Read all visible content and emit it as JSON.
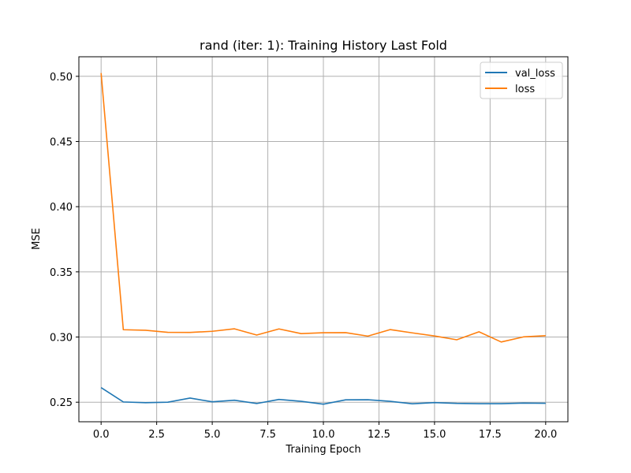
{
  "chart_data": {
    "type": "line",
    "title": "rand (iter: 1): Training History Last Fold",
    "xlabel": "Training Epoch",
    "ylabel": "MSE",
    "xlim": [
      -1.0,
      21.0
    ],
    "ylim": [
      0.235,
      0.515
    ],
    "xticks": [
      0.0,
      2.5,
      5.0,
      7.5,
      10.0,
      12.5,
      15.0,
      17.5,
      20.0
    ],
    "xtick_labels": [
      "0.0",
      "2.5",
      "5.0",
      "7.5",
      "10.0",
      "12.5",
      "15.0",
      "17.5",
      "20.0"
    ],
    "yticks": [
      0.25,
      0.3,
      0.35,
      0.4,
      0.45,
      0.5
    ],
    "ytick_labels": [
      "0.25",
      "0.30",
      "0.35",
      "0.40",
      "0.45",
      "0.50"
    ],
    "grid": true,
    "legend_position": "upper right",
    "x": [
      0,
      1,
      2,
      3,
      4,
      5,
      6,
      7,
      8,
      9,
      10,
      11,
      12,
      13,
      14,
      15,
      16,
      17,
      18,
      19,
      20
    ],
    "series": [
      {
        "name": "val_loss",
        "color": "#1f77b4",
        "values": [
          0.2612,
          0.2502,
          0.2496,
          0.25,
          0.2532,
          0.2503,
          0.2515,
          0.249,
          0.2521,
          0.2507,
          0.2485,
          0.2518,
          0.2519,
          0.2507,
          0.2488,
          0.2497,
          0.2491,
          0.2489,
          0.2489,
          0.2493,
          0.2492
        ]
      },
      {
        "name": "loss",
        "color": "#ff7f0e",
        "values": [
          0.5025,
          0.3056,
          0.3052,
          0.3036,
          0.3035,
          0.3044,
          0.3063,
          0.3015,
          0.3062,
          0.3026,
          0.3033,
          0.3034,
          0.3007,
          0.3057,
          0.3032,
          0.3008,
          0.2979,
          0.304,
          0.2962,
          0.3001,
          0.301
        ]
      }
    ]
  }
}
